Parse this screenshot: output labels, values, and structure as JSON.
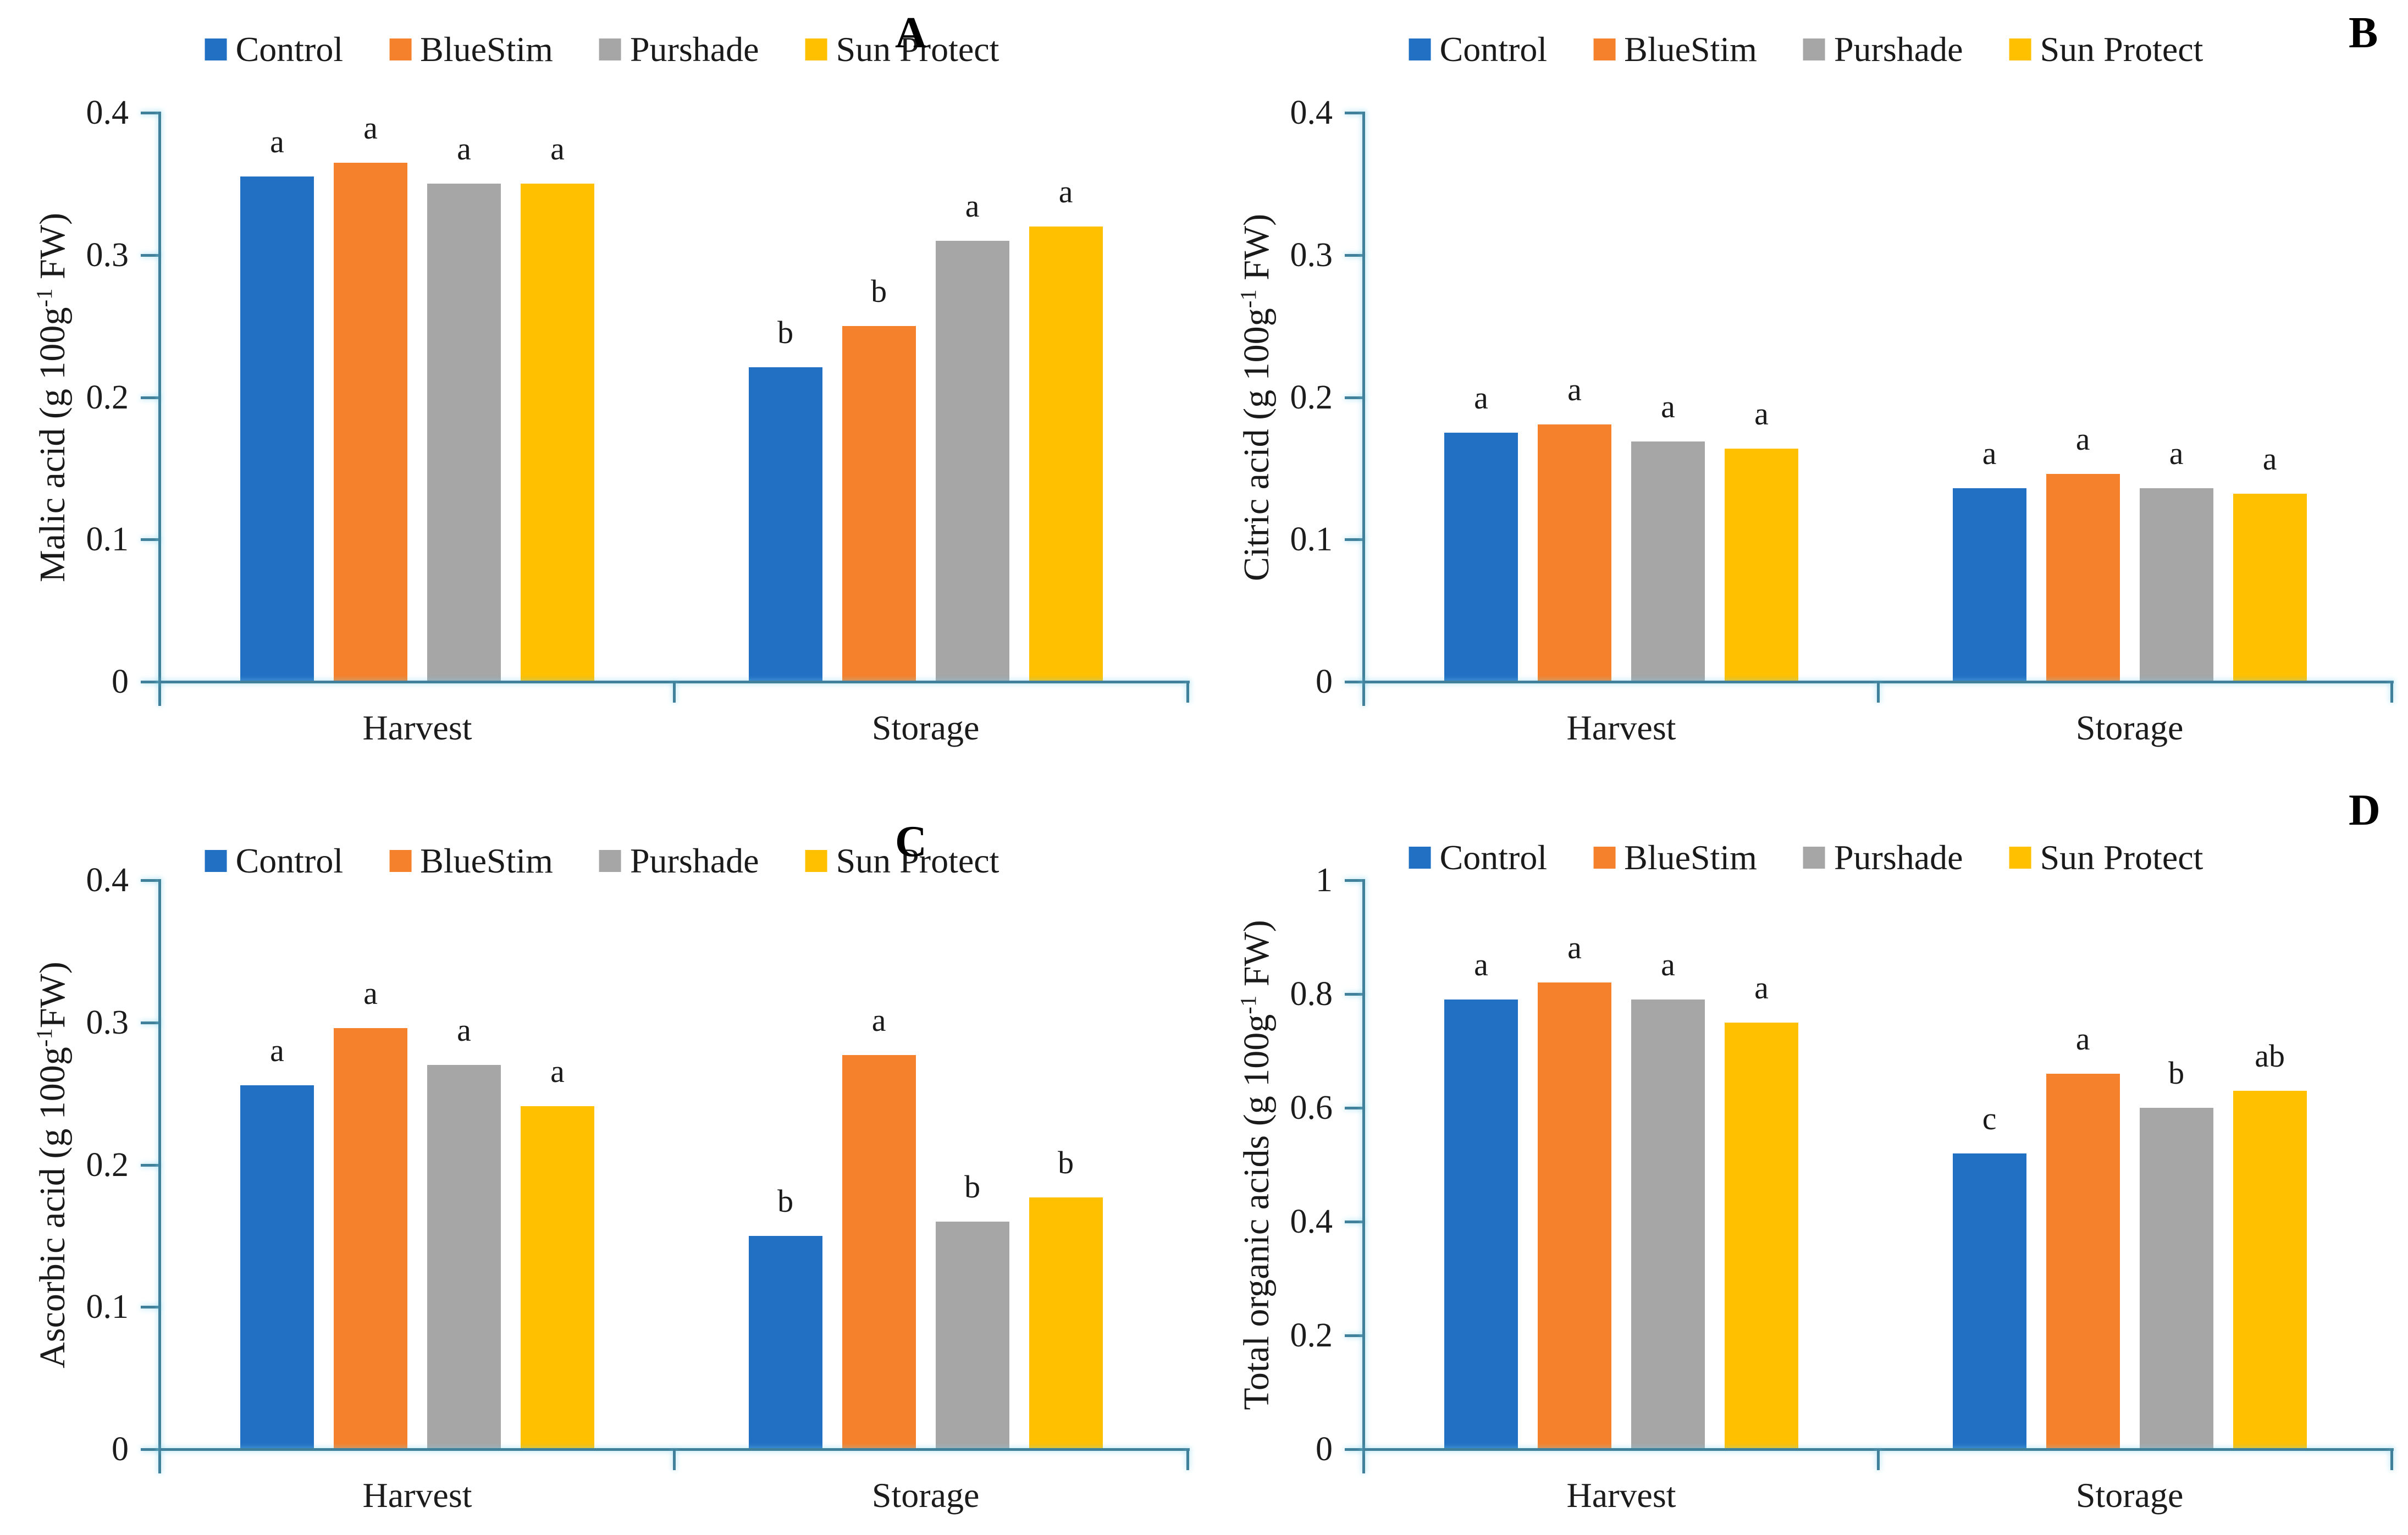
{
  "figure": {
    "background": "#ffffff"
  },
  "axis": {
    "line_color": "#41809a",
    "tick_text_color": "#1c1c1c",
    "sig_letter_color": "#1a1a1a"
  },
  "legend_colors": {
    "control": "#2170c4",
    "bluestim": "#f5812c",
    "purshade": "#a6a6a6",
    "sun_protect": "#ffc000"
  },
  "chart_data": [
    {
      "type": "bar",
      "panel_label": "A",
      "ylabel": {
        "pre": "Malic acid (g 100g",
        "sup": "-1",
        "post": " FW)"
      },
      "ylim": [
        0,
        0.4
      ],
      "grid": false,
      "legend_position": "top-center",
      "yticks": [
        {
          "v": 0,
          "label": "0"
        },
        {
          "v": 0.1,
          "label": "0.1"
        },
        {
          "v": 0.2,
          "label": "0.2"
        },
        {
          "v": 0.3,
          "label": "0.3"
        },
        {
          "v": 0.4,
          "label": "0.4"
        }
      ],
      "categories": [
        "Harvest",
        "Storage"
      ],
      "series": [
        {
          "name": "Control",
          "color": "#2170c4",
          "values": [
            0.355,
            0.221
          ],
          "sig_letters": [
            "a",
            "b"
          ]
        },
        {
          "name": "BlueStim",
          "color": "#f5812c",
          "values": [
            0.365,
            0.25
          ],
          "sig_letters": [
            "a",
            "b"
          ]
        },
        {
          "name": "Purshade",
          "color": "#a6a6a6",
          "values": [
            0.35,
            0.31
          ],
          "sig_letters": [
            "a",
            "a"
          ]
        },
        {
          "name": "Sun Protect",
          "color": "#ffc000",
          "values": [
            0.35,
            0.32
          ],
          "sig_letters": [
            "a",
            "a"
          ]
        }
      ]
    },
    {
      "type": "bar",
      "panel_label": "B",
      "ylabel": {
        "pre": "Citric acid (g 100g",
        "sup": "-1",
        "post": " FW)"
      },
      "ylim": [
        0,
        0.4
      ],
      "grid": false,
      "legend_position": "top-center",
      "yticks": [
        {
          "v": 0,
          "label": "0"
        },
        {
          "v": 0.1,
          "label": "0.1"
        },
        {
          "v": 0.2,
          "label": "0.2"
        },
        {
          "v": 0.3,
          "label": "0.3"
        },
        {
          "v": 0.4,
          "label": "0.4"
        }
      ],
      "categories": [
        "Harvest",
        "Storage"
      ],
      "series": [
        {
          "name": "Control",
          "color": "#2170c4",
          "values": [
            0.175,
            0.136
          ],
          "sig_letters": [
            "a",
            "a"
          ]
        },
        {
          "name": "BlueStim",
          "color": "#f5812c",
          "values": [
            0.181,
            0.146
          ],
          "sig_letters": [
            "a",
            "a"
          ]
        },
        {
          "name": "Purshade",
          "color": "#a6a6a6",
          "values": [
            0.169,
            0.136
          ],
          "sig_letters": [
            "a",
            "a"
          ]
        },
        {
          "name": "Sun Protect",
          "color": "#ffc000",
          "values": [
            0.164,
            0.132
          ],
          "sig_letters": [
            "a",
            "a"
          ]
        }
      ]
    },
    {
      "type": "bar",
      "panel_label": "C",
      "ylabel": {
        "pre": "Ascorbic acid (g 100g",
        "sup": "-1",
        "post": "FW)"
      },
      "ylim": [
        0,
        0.4
      ],
      "grid": false,
      "legend_position": "top-center",
      "yticks": [
        {
          "v": 0,
          "label": "0"
        },
        {
          "v": 0.1,
          "label": "0.1"
        },
        {
          "v": 0.2,
          "label": "0.2"
        },
        {
          "v": 0.3,
          "label": "0.3"
        },
        {
          "v": 0.4,
          "label": "0.4"
        }
      ],
      "categories": [
        "Harvest",
        "Storage"
      ],
      "series": [
        {
          "name": "Control",
          "color": "#2170c4",
          "values": [
            0.256,
            0.15
          ],
          "sig_letters": [
            "a",
            "b"
          ]
        },
        {
          "name": "BlueStim",
          "color": "#f5812c",
          "values": [
            0.296,
            0.277
          ],
          "sig_letters": [
            "a",
            "a"
          ]
        },
        {
          "name": "Purshade",
          "color": "#a6a6a6",
          "values": [
            0.27,
            0.16
          ],
          "sig_letters": [
            "a",
            "b"
          ]
        },
        {
          "name": "Sun Protect",
          "color": "#ffc000",
          "values": [
            0.241,
            0.177
          ],
          "sig_letters": [
            "a",
            "b"
          ]
        }
      ]
    },
    {
      "type": "bar",
      "panel_label": "D",
      "ylabel": {
        "pre": "Total organic acids (g 100g",
        "sup": "-1",
        "post": " FW)"
      },
      "ylim": [
        0,
        1
      ],
      "grid": false,
      "legend_position": "top-center",
      "yticks": [
        {
          "v": 0,
          "label": "0"
        },
        {
          "v": 0.2,
          "label": "0.2"
        },
        {
          "v": 0.4,
          "label": "0.4"
        },
        {
          "v": 0.6,
          "label": "0.6"
        },
        {
          "v": 0.8,
          "label": "0.8"
        },
        {
          "v": 1,
          "label": "1"
        }
      ],
      "categories": [
        "Harvest",
        "Storage"
      ],
      "series": [
        {
          "name": "Control",
          "color": "#2170c4",
          "values": [
            0.79,
            0.52
          ],
          "sig_letters": [
            "a",
            "c"
          ]
        },
        {
          "name": "BlueStim",
          "color": "#f5812c",
          "values": [
            0.82,
            0.66
          ],
          "sig_letters": [
            "a",
            "a"
          ]
        },
        {
          "name": "Purshade",
          "color": "#a6a6a6",
          "values": [
            0.79,
            0.6
          ],
          "sig_letters": [
            "a",
            "b"
          ]
        },
        {
          "name": "Sun Protect",
          "color": "#ffc000",
          "values": [
            0.75,
            0.63
          ],
          "sig_letters": [
            "a",
            "ab"
          ]
        }
      ]
    }
  ]
}
